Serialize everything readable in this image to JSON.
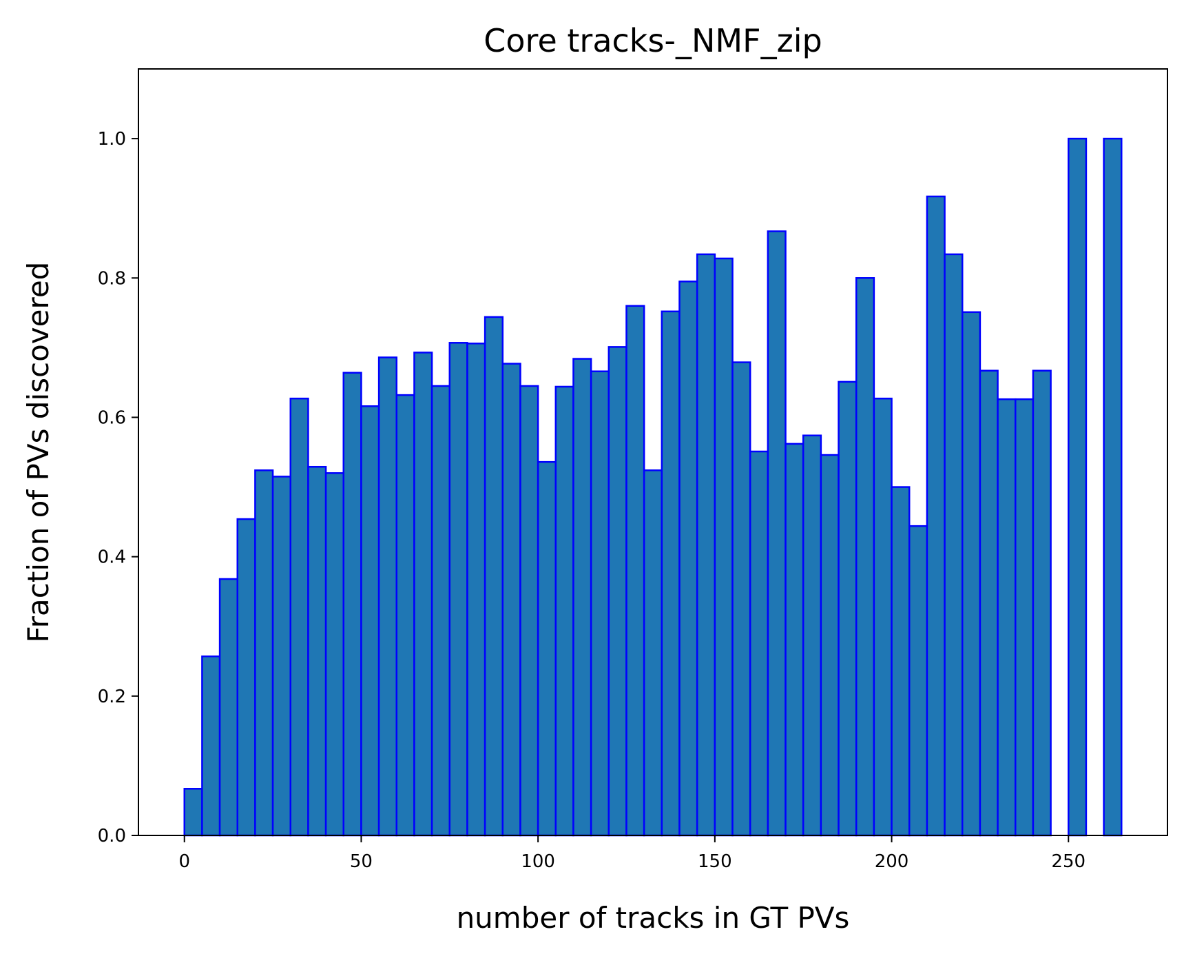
{
  "chart_data": {
    "type": "bar",
    "title": "Core tracks-_NMF_zip",
    "xlabel": "number of tracks in GT PVs",
    "ylabel": "Fraction of PVs discovered",
    "xlim": [
      -13,
      278
    ],
    "ylim": [
      0,
      1.1
    ],
    "xticks": [
      0,
      50,
      100,
      150,
      200,
      250
    ],
    "yticks": [
      0.0,
      0.2,
      0.4,
      0.6,
      0.8,
      1.0
    ],
    "xtick_labels": [
      "0",
      "50",
      "100",
      "150",
      "200",
      "250"
    ],
    "ytick_labels": [
      "0.0",
      "0.2",
      "0.4",
      "0.6",
      "0.8",
      "1.0"
    ],
    "bin_edges": [
      0,
      5,
      10,
      15,
      20,
      25,
      30,
      35,
      40,
      45,
      50,
      55,
      60,
      65,
      70,
      75,
      80,
      85,
      90,
      95,
      100,
      105,
      110,
      115,
      120,
      125,
      130,
      135,
      140,
      145,
      150,
      155,
      160,
      165,
      170,
      175,
      180,
      185,
      190,
      195,
      200,
      205,
      210,
      215,
      220,
      225,
      230,
      235,
      240,
      245,
      250,
      255,
      260,
      265
    ],
    "values": [
      0.067,
      0.257,
      0.368,
      0.454,
      0.524,
      0.515,
      0.627,
      0.529,
      0.52,
      0.664,
      0.616,
      0.686,
      0.632,
      0.693,
      0.645,
      0.707,
      0.706,
      0.744,
      0.677,
      0.645,
      0.536,
      0.644,
      0.684,
      0.666,
      0.701,
      0.76,
      0.524,
      0.752,
      0.795,
      0.834,
      0.828,
      0.679,
      0.551,
      0.867,
      0.562,
      0.574,
      0.546,
      0.651,
      0.8,
      0.627,
      0.5,
      0.444,
      0.917,
      0.834,
      0.751,
      0.667,
      0.626,
      0.626,
      0.667,
      0,
      1.0,
      0,
      1.0
    ],
    "grid": false,
    "colors": {
      "fill": "#1f77b4",
      "edge": "#0000ff",
      "axis": "#000000"
    }
  }
}
